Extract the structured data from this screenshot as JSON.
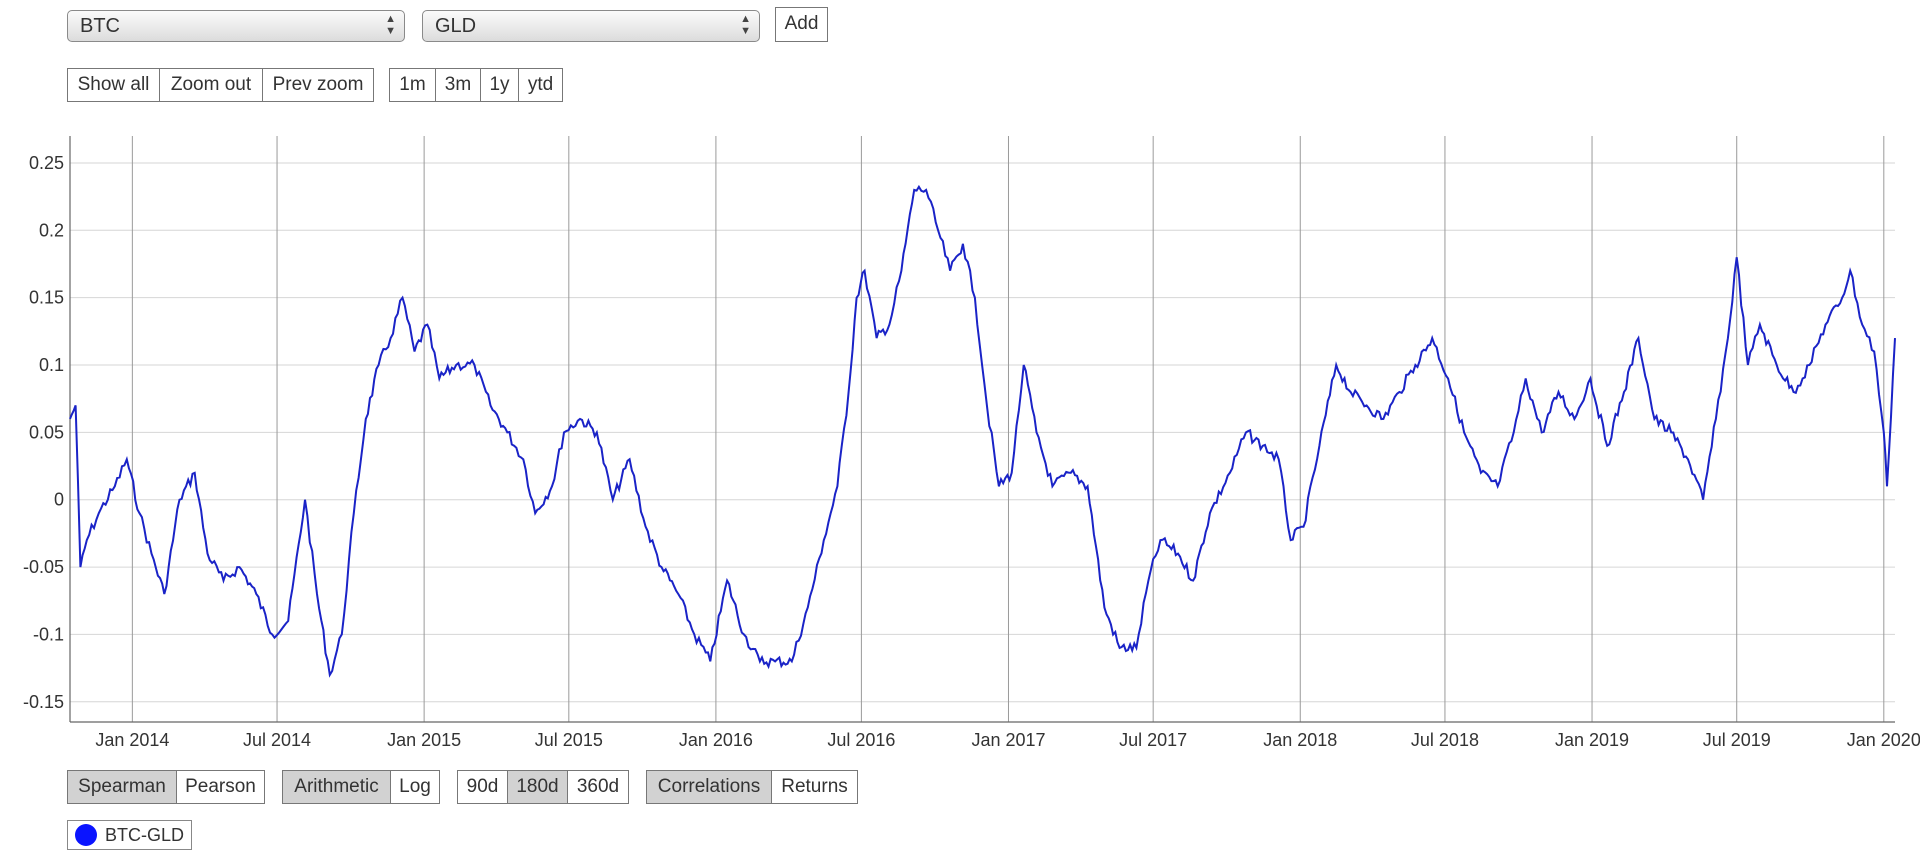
{
  "selectors": {
    "asset1": "BTC",
    "asset2": "GLD",
    "add_label": "Add"
  },
  "zoom_buttons": [
    "Show all",
    "Zoom out",
    "Prev zoom"
  ],
  "range_buttons": [
    "1m",
    "3m",
    "1y",
    "ytd"
  ],
  "method_toggle": {
    "options": [
      "Spearman",
      "Pearson"
    ],
    "selected": "Spearman"
  },
  "scale_toggle": {
    "options": [
      "Arithmetic",
      "Log"
    ],
    "selected": "Arithmetic"
  },
  "window_toggle": {
    "options": [
      "90d",
      "180d",
      "360d"
    ],
    "selected": "180d"
  },
  "view_toggle": {
    "options": [
      "Correlations",
      "Returns"
    ],
    "selected": "Correlations"
  },
  "legend": {
    "label": "BTC-GLD",
    "color": "#0a14ff"
  },
  "chart_data": {
    "type": "line",
    "title": "",
    "xlabel": "",
    "ylabel": "",
    "line_color": "#1a23c7",
    "grid": true,
    "y_ticks": [
      "0.25",
      "0.2",
      "0.15",
      "0.1",
      "0.05",
      "0",
      "-0.05",
      "-0.1",
      "-0.15"
    ],
    "y_tick_values": [
      0.25,
      0.2,
      0.15,
      0.1,
      0.05,
      0,
      -0.05,
      -0.1,
      -0.15
    ],
    "ylim": [
      -0.165,
      0.27
    ],
    "x_ticks": [
      "Jan 2014",
      "Jul 2014",
      "Jan 2015",
      "Jul 2015",
      "Jan 2016",
      "Jul 2016",
      "Jan 2017",
      "Jul 2017",
      "Jan 2018",
      "Jul 2018",
      "Jan 2019",
      "Jul 2019",
      "Jan 2020"
    ],
    "x_tick_dates": [
      "2014-01-01",
      "2014-07-01",
      "2015-01-01",
      "2015-07-01",
      "2016-01-01",
      "2016-07-01",
      "2017-01-01",
      "2017-07-01",
      "2018-01-01",
      "2018-07-01",
      "2019-01-01",
      "2019-07-01",
      "2020-01-01"
    ],
    "xlim": [
      "2013-10-15",
      "2020-01-15"
    ],
    "series": [
      {
        "name": "BTC-GLD",
        "points": [
          [
            "2013-10-15",
            0.06
          ],
          [
            "2013-10-22",
            0.07
          ],
          [
            "2013-10-28",
            -0.05
          ],
          [
            "2013-11-05",
            -0.03
          ],
          [
            "2013-11-20",
            -0.01
          ],
          [
            "2013-12-10",
            0.01
          ],
          [
            "2013-12-25",
            0.03
          ],
          [
            "2014-01-10",
            -0.01
          ],
          [
            "2014-01-25",
            -0.04
          ],
          [
            "2014-02-10",
            -0.07
          ],
          [
            "2014-03-01",
            0.0
          ],
          [
            "2014-03-20",
            0.02
          ],
          [
            "2014-04-05",
            -0.04
          ],
          [
            "2014-04-25",
            -0.06
          ],
          [
            "2014-05-15",
            -0.05
          ],
          [
            "2014-06-05",
            -0.07
          ],
          [
            "2014-06-25",
            -0.1
          ],
          [
            "2014-07-15",
            -0.09
          ],
          [
            "2014-08-05",
            0.0
          ],
          [
            "2014-08-20",
            -0.07
          ],
          [
            "2014-09-05",
            -0.13
          ],
          [
            "2014-09-20",
            -0.1
          ],
          [
            "2014-10-05",
            -0.01
          ],
          [
            "2014-10-20",
            0.06
          ],
          [
            "2014-11-05",
            0.1
          ],
          [
            "2014-11-20",
            0.12
          ],
          [
            "2014-12-05",
            0.15
          ],
          [
            "2014-12-20",
            0.11
          ],
          [
            "2015-01-05",
            0.13
          ],
          [
            "2015-01-20",
            0.09
          ],
          [
            "2015-02-10",
            0.1
          ],
          [
            "2015-03-05",
            0.1
          ],
          [
            "2015-03-25",
            0.07
          ],
          [
            "2015-04-15",
            0.05
          ],
          [
            "2015-05-05",
            0.03
          ],
          [
            "2015-05-20",
            -0.01
          ],
          [
            "2015-06-10",
            0.01
          ],
          [
            "2015-06-25",
            0.05
          ],
          [
            "2015-07-15",
            0.06
          ],
          [
            "2015-08-05",
            0.05
          ],
          [
            "2015-08-25",
            0.0
          ],
          [
            "2015-09-15",
            0.03
          ],
          [
            "2015-10-05",
            -0.02
          ],
          [
            "2015-10-25",
            -0.05
          ],
          [
            "2015-11-15",
            -0.07
          ],
          [
            "2015-12-05",
            -0.1
          ],
          [
            "2015-12-25",
            -0.12
          ],
          [
            "2016-01-15",
            -0.06
          ],
          [
            "2016-02-05",
            -0.1
          ],
          [
            "2016-02-25",
            -0.12
          ],
          [
            "2016-03-15",
            -0.12
          ],
          [
            "2016-04-05",
            -0.12
          ],
          [
            "2016-04-25",
            -0.08
          ],
          [
            "2016-05-15",
            -0.03
          ],
          [
            "2016-06-01",
            0.01
          ],
          [
            "2016-06-15",
            0.08
          ],
          [
            "2016-06-25",
            0.15
          ],
          [
            "2016-07-05",
            0.17
          ],
          [
            "2016-07-20",
            0.12
          ],
          [
            "2016-08-05",
            0.13
          ],
          [
            "2016-08-20",
            0.17
          ],
          [
            "2016-09-05",
            0.23
          ],
          [
            "2016-09-20",
            0.23
          ],
          [
            "2016-10-05",
            0.2
          ],
          [
            "2016-10-20",
            0.17
          ],
          [
            "2016-11-05",
            0.19
          ],
          [
            "2016-11-20",
            0.15
          ],
          [
            "2016-12-05",
            0.07
          ],
          [
            "2016-12-20",
            0.01
          ],
          [
            "2017-01-05",
            0.02
          ],
          [
            "2017-01-20",
            0.1
          ],
          [
            "2017-02-05",
            0.05
          ],
          [
            "2017-02-25",
            0.01
          ],
          [
            "2017-03-20",
            0.02
          ],
          [
            "2017-04-10",
            0.01
          ],
          [
            "2017-05-01",
            -0.08
          ],
          [
            "2017-05-20",
            -0.11
          ],
          [
            "2017-06-10",
            -0.11
          ],
          [
            "2017-06-25",
            -0.06
          ],
          [
            "2017-07-10",
            -0.03
          ],
          [
            "2017-08-01",
            -0.04
          ],
          [
            "2017-08-20",
            -0.06
          ],
          [
            "2017-09-10",
            -0.01
          ],
          [
            "2017-10-05",
            0.02
          ],
          [
            "2017-10-25",
            0.05
          ],
          [
            "2017-11-15",
            0.04
          ],
          [
            "2017-12-05",
            0.03
          ],
          [
            "2017-12-20",
            -0.03
          ],
          [
            "2018-01-05",
            -0.02
          ],
          [
            "2018-01-25",
            0.04
          ],
          [
            "2018-02-15",
            0.1
          ],
          [
            "2018-03-05",
            0.08
          ],
          [
            "2018-03-25",
            0.07
          ],
          [
            "2018-04-15",
            0.06
          ],
          [
            "2018-05-05",
            0.08
          ],
          [
            "2018-05-25",
            0.1
          ],
          [
            "2018-06-15",
            0.12
          ],
          [
            "2018-07-05",
            0.09
          ],
          [
            "2018-07-25",
            0.05
          ],
          [
            "2018-08-15",
            0.02
          ],
          [
            "2018-09-05",
            0.01
          ],
          [
            "2018-09-25",
            0.05
          ],
          [
            "2018-10-10",
            0.09
          ],
          [
            "2018-10-30",
            0.05
          ],
          [
            "2018-11-20",
            0.08
          ],
          [
            "2018-12-10",
            0.06
          ],
          [
            "2018-12-30",
            0.09
          ],
          [
            "2019-01-20",
            0.04
          ],
          [
            "2019-02-10",
            0.08
          ],
          [
            "2019-02-28",
            0.12
          ],
          [
            "2019-03-20",
            0.06
          ],
          [
            "2019-04-10",
            0.05
          ],
          [
            "2019-05-01",
            0.03
          ],
          [
            "2019-05-20",
            0.0
          ],
          [
            "2019-06-05",
            0.06
          ],
          [
            "2019-06-20",
            0.12
          ],
          [
            "2019-07-01",
            0.18
          ],
          [
            "2019-07-15",
            0.1
          ],
          [
            "2019-07-30",
            0.13
          ],
          [
            "2019-08-20",
            0.1
          ],
          [
            "2019-09-10",
            0.08
          ],
          [
            "2019-09-30",
            0.1
          ],
          [
            "2019-10-20",
            0.13
          ],
          [
            "2019-11-10",
            0.15
          ],
          [
            "2019-11-20",
            0.17
          ],
          [
            "2019-12-05",
            0.13
          ],
          [
            "2019-12-20",
            0.11
          ],
          [
            "2020-01-01",
            0.05
          ],
          [
            "2020-01-05",
            0.01
          ],
          [
            "2020-01-15",
            0.12
          ]
        ]
      }
    ]
  }
}
